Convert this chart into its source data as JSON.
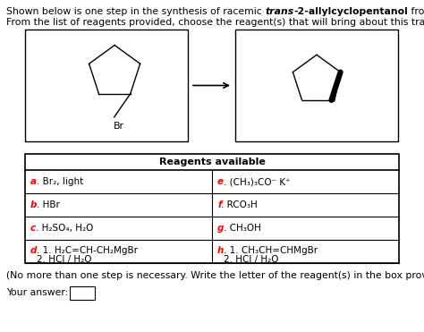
{
  "background": "#ffffff",
  "reagents_header": "Reagents available",
  "footer": "(No more than one step is necessary. Write the letter of the reagent(s) in the box provided, e.g., g)",
  "answer_label": "Your answer:",
  "table": {
    "left": [
      {
        "letter": "a",
        "text": ". Br₂, light"
      },
      {
        "letter": "b",
        "text": ". HBr"
      },
      {
        "letter": "c",
        "text": ". H₂SO₄, H₂O"
      },
      {
        "letter": "d",
        "text": ". 1. H₂C=CH-CH₂MgBr\n   2. HCl / H₂O"
      }
    ],
    "right": [
      {
        "letter": "e",
        "text": ". (CH₃)₃CO⁻ K⁺"
      },
      {
        "letter": "f",
        "text": ". RCO₃H"
      },
      {
        "letter": "g",
        "text": ". CH₃OH"
      },
      {
        "letter": "h",
        "text": ". 1. CH₃CH=CHMgBr\n   2. HCl / H₂O"
      }
    ]
  }
}
